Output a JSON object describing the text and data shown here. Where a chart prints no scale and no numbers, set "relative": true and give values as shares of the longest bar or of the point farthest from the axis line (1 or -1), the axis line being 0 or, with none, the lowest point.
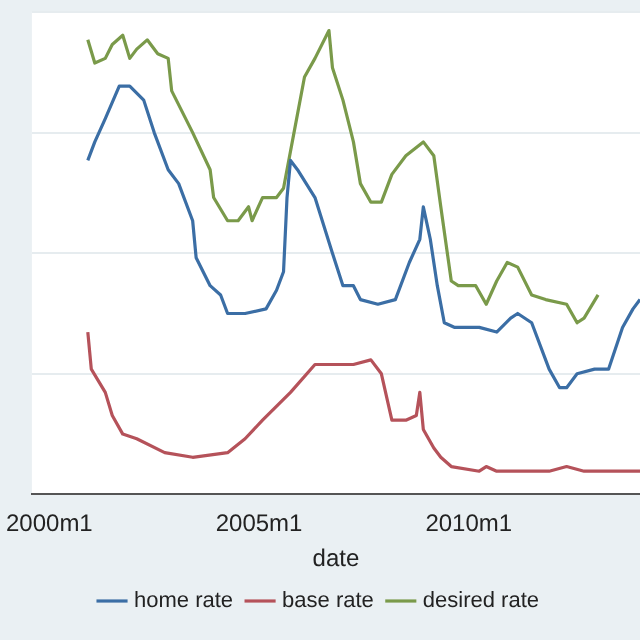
{
  "chart_data": {
    "type": "line",
    "xlabel": "date",
    "relative": true,
    "grid": "y",
    "legend": "bottom",
    "marker": "none",
    "line_style": "solid",
    "xlim": [
      "1999-08",
      "2014-02"
    ],
    "xticks": [
      {
        "value": "2000-01",
        "label": "2000m1"
      },
      {
        "value": "2005-01",
        "label": "2005m1"
      },
      {
        "value": "2010-01",
        "label": "2010m1"
      }
    ],
    "series": [
      {
        "name": "home rate",
        "color": "#3b6ea5",
        "x": [
          "2000-12",
          "2001-02",
          "2001-05",
          "2001-09",
          "2001-12",
          "2002-04",
          "2002-07",
          "2002-11",
          "2003-02",
          "2003-06",
          "2003-07",
          "2003-11",
          "2004-02",
          "2004-04",
          "2004-09",
          "2005-03",
          "2005-06",
          "2005-08",
          "2005-09",
          "2005-10",
          "2005-12",
          "2006-05",
          "2006-10",
          "2007-01",
          "2007-04",
          "2007-06",
          "2007-11",
          "2008-04",
          "2008-08",
          "2008-11",
          "2008-12",
          "2009-02",
          "2009-04",
          "2009-06",
          "2009-09",
          "2010-04",
          "2010-09",
          "2011-01",
          "2011-03",
          "2011-07",
          "2011-12",
          "2012-03",
          "2012-05",
          "2012-08",
          "2013-01",
          "2013-05",
          "2013-09",
          "2013-12",
          "2014-02"
        ],
        "values": [
          0.72,
          0.76,
          0.81,
          0.88,
          0.88,
          0.85,
          0.78,
          0.7,
          0.67,
          0.59,
          0.51,
          0.45,
          0.43,
          0.39,
          0.39,
          0.4,
          0.44,
          0.48,
          0.64,
          0.72,
          0.7,
          0.64,
          0.52,
          0.45,
          0.45,
          0.42,
          0.41,
          0.42,
          0.5,
          0.55,
          0.62,
          0.55,
          0.45,
          0.37,
          0.36,
          0.36,
          0.35,
          0.38,
          0.39,
          0.37,
          0.27,
          0.23,
          0.23,
          0.26,
          0.27,
          0.27,
          0.36,
          0.4,
          0.42
        ]
      },
      {
        "name": "base rate",
        "color": "#b5525a",
        "x": [
          "2000-12",
          "2001-01",
          "2001-05",
          "2001-07",
          "2001-10",
          "2002-02",
          "2002-10",
          "2003-06",
          "2004-04",
          "2004-09",
          "2005-02",
          "2005-10",
          "2006-05",
          "2007-04",
          "2007-09",
          "2007-12",
          "2008-03",
          "2008-07",
          "2008-10",
          "2008-11",
          "2008-12",
          "2009-03",
          "2009-05",
          "2009-08",
          "2010-04",
          "2010-06",
          "2010-09",
          "2011-12",
          "2012-05",
          "2012-10",
          "2014-02"
        ],
        "values": [
          0.35,
          0.27,
          0.22,
          0.17,
          0.13,
          0.12,
          0.09,
          0.08,
          0.09,
          0.12,
          0.16,
          0.22,
          0.28,
          0.28,
          0.29,
          0.26,
          0.16,
          0.16,
          0.17,
          0.22,
          0.14,
          0.1,
          0.08,
          0.06,
          0.05,
          0.06,
          0.05,
          0.05,
          0.06,
          0.05,
          0.05
        ]
      },
      {
        "name": "desired rate",
        "color": "#7a9a4a",
        "x": [
          "2000-12",
          "2001-02",
          "2001-05",
          "2001-07",
          "2001-10",
          "2001-12",
          "2002-02",
          "2002-05",
          "2002-08",
          "2002-11",
          "2002-12",
          "2003-06",
          "2003-11",
          "2003-12",
          "2004-04",
          "2004-07",
          "2004-10",
          "2004-11",
          "2005-02",
          "2005-06",
          "2005-08",
          "2005-11",
          "2006-02",
          "2006-05",
          "2006-09",
          "2006-10",
          "2007-01",
          "2007-04",
          "2007-06",
          "2007-09",
          "2007-12",
          "2008-03",
          "2008-07",
          "2008-12",
          "2009-03",
          "2009-05",
          "2009-08",
          "2009-10",
          "2010-03",
          "2010-06",
          "2010-09",
          "2010-12",
          "2011-03",
          "2011-07",
          "2011-11",
          "2012-05",
          "2012-08",
          "2012-10",
          "2013-02"
        ],
        "values": [
          0.98,
          0.93,
          0.94,
          0.97,
          0.99,
          0.94,
          0.96,
          0.98,
          0.95,
          0.94,
          0.87,
          0.78,
          0.7,
          0.64,
          0.59,
          0.59,
          0.62,
          0.59,
          0.64,
          0.64,
          0.66,
          0.78,
          0.9,
          0.94,
          1.0,
          0.92,
          0.85,
          0.76,
          0.67,
          0.63,
          0.63,
          0.69,
          0.73,
          0.76,
          0.73,
          0.62,
          0.46,
          0.45,
          0.45,
          0.41,
          0.46,
          0.5,
          0.49,
          0.43,
          0.42,
          0.41,
          0.37,
          0.38,
          0.43
        ]
      }
    ]
  }
}
